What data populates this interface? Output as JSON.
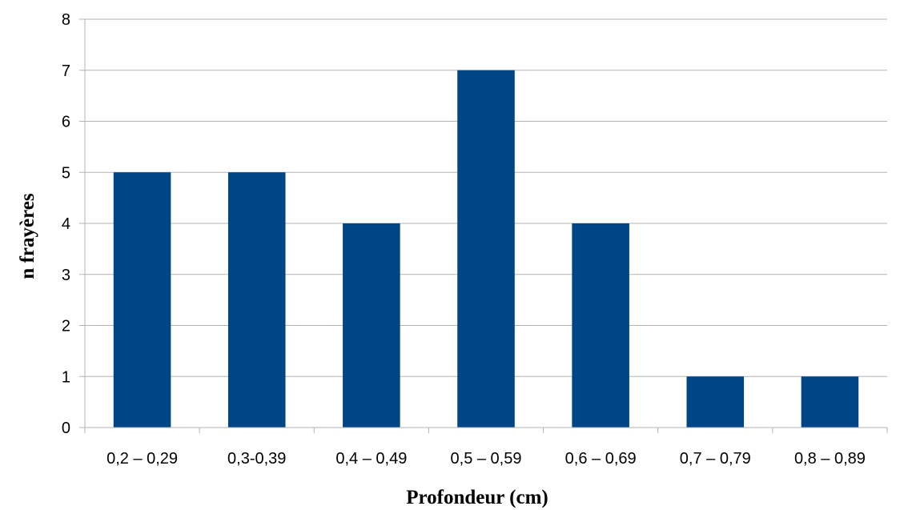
{
  "chart_data": {
    "type": "bar",
    "categories": [
      "0,2 – 0,29",
      "0,3-0,39",
      "0,4 – 0,49",
      "0,5 – 0,59",
      "0,6 – 0,69",
      "0,7 – 0,79",
      "0,8 – 0,89"
    ],
    "values": [
      5,
      5,
      4,
      7,
      4,
      1,
      1
    ],
    "xlabel": "Profondeur (cm)",
    "ylabel": "n frayères",
    "ylim": [
      0,
      8
    ],
    "yticks": [
      "0",
      "1",
      "2",
      "3",
      "4",
      "5",
      "6",
      "7",
      "8"
    ],
    "grid": true,
    "legend": "none",
    "bar_color": "#004586",
    "grid_color": "#b3b3b3",
    "axis_color": "#b3b3b3"
  }
}
